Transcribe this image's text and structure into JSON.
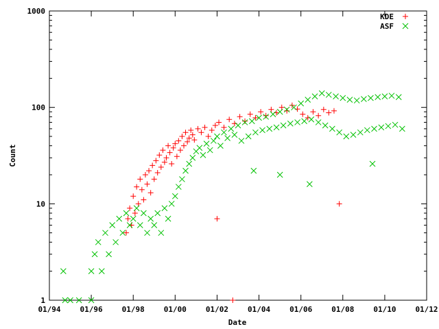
{
  "chart_data": {
    "type": "scatter",
    "title": "",
    "xlabel": "Date",
    "ylabel": "Count",
    "x_scale": "date",
    "y_scale": "log",
    "xlim": [
      "1994-01-01",
      "2012-01-01"
    ],
    "ylim": [
      1,
      1000
    ],
    "x_tick_labels": [
      "01/94",
      "01/96",
      "01/98",
      "01/00",
      "01/02",
      "01/04",
      "01/06",
      "01/08",
      "01/10",
      "01/12"
    ],
    "x_tick_dates": [
      "1994-01-01",
      "1996-01-01",
      "1998-01-01",
      "2000-01-01",
      "2002-01-01",
      "2004-01-01",
      "2006-01-01",
      "2008-01-01",
      "2010-01-01",
      "2012-01-01"
    ],
    "y_tick_labels": [
      "1",
      "10",
      "100",
      "1000"
    ],
    "y_tick_values": [
      1,
      10,
      100,
      1000
    ],
    "grid": false,
    "legend_position": "top-right",
    "series": [
      {
        "name": "KDE",
        "marker": "+",
        "color": "#ff0000",
        "points": [
          [
            "1997-09-01",
            5
          ],
          [
            "1997-10-01",
            7
          ],
          [
            "1997-11-01",
            9
          ],
          [
            "1997-12-01",
            6
          ],
          [
            "1998-01-01",
            12
          ],
          [
            "1998-02-01",
            8
          ],
          [
            "1998-03-01",
            15
          ],
          [
            "1998-04-01",
            10
          ],
          [
            "1998-05-01",
            18
          ],
          [
            "1998-06-01",
            14
          ],
          [
            "1998-07-01",
            11
          ],
          [
            "1998-08-01",
            20
          ],
          [
            "1998-09-01",
            16
          ],
          [
            "1998-10-01",
            22
          ],
          [
            "1998-11-01",
            13
          ],
          [
            "1998-12-01",
            25
          ],
          [
            "1999-01-01",
            18
          ],
          [
            "1999-02-01",
            28
          ],
          [
            "1999-03-01",
            21
          ],
          [
            "1999-04-01",
            32
          ],
          [
            "1999-05-01",
            24
          ],
          [
            "1999-06-01",
            36
          ],
          [
            "1999-07-01",
            27
          ],
          [
            "1999-08-01",
            30
          ],
          [
            "1999-09-01",
            40
          ],
          [
            "1999-10-01",
            34
          ],
          [
            "1999-11-01",
            26
          ],
          [
            "1999-12-01",
            38
          ],
          [
            "2000-01-01",
            42
          ],
          [
            "2000-02-01",
            31
          ],
          [
            "2000-03-01",
            45
          ],
          [
            "2000-04-01",
            36
          ],
          [
            "2000-05-01",
            50
          ],
          [
            "2000-06-01",
            40
          ],
          [
            "2000-07-01",
            55
          ],
          [
            "2000-08-01",
            44
          ],
          [
            "2000-09-01",
            48
          ],
          [
            "2000-10-01",
            58
          ],
          [
            "2000-11-01",
            52
          ],
          [
            "2000-12-01",
            46
          ],
          [
            "2001-02-01",
            60
          ],
          [
            "2001-04-01",
            55
          ],
          [
            "2001-06-01",
            62
          ],
          [
            "2001-08-01",
            50
          ],
          [
            "2001-10-01",
            58
          ],
          [
            "2001-12-01",
            65
          ],
          [
            "2002-01-01",
            7
          ],
          [
            "2002-02-01",
            70
          ],
          [
            "2002-05-01",
            62
          ],
          [
            "2002-08-01",
            75
          ],
          [
            "2002-11-01",
            68
          ],
          [
            "2003-02-01",
            80
          ],
          [
            "2003-05-01",
            72
          ],
          [
            "2003-08-01",
            85
          ],
          [
            "2003-11-01",
            78
          ],
          [
            "2004-02-01",
            90
          ],
          [
            "2004-05-01",
            82
          ],
          [
            "2004-08-01",
            95
          ],
          [
            "2004-11-01",
            88
          ],
          [
            "2005-02-01",
            100
          ],
          [
            "2005-05-01",
            92
          ],
          [
            "2005-08-01",
            105
          ],
          [
            "2005-11-01",
            96
          ],
          [
            "2006-02-01",
            85
          ],
          [
            "2006-05-01",
            78
          ],
          [
            "2006-08-01",
            90
          ],
          [
            "2006-11-01",
            82
          ],
          [
            "2007-02-01",
            95
          ],
          [
            "2007-05-01",
            88
          ],
          [
            "2007-08-01",
            92
          ],
          [
            "2007-11-01",
            10
          ],
          [
            "2002-10-01",
            1
          ]
        ]
      },
      {
        "name": "ASF",
        "marker": "x",
        "color": "#00c000",
        "points": [
          [
            "1994-09-01",
            2
          ],
          [
            "1994-10-01",
            1
          ],
          [
            "1995-01-01",
            1
          ],
          [
            "1995-06-01",
            1
          ],
          [
            "1996-01-01",
            1
          ],
          [
            "1996-01-01",
            2
          ],
          [
            "1996-03-01",
            3
          ],
          [
            "1996-05-01",
            4
          ],
          [
            "1996-07-01",
            2
          ],
          [
            "1996-09-01",
            5
          ],
          [
            "1996-11-01",
            3
          ],
          [
            "1997-01-01",
            6
          ],
          [
            "1997-03-01",
            4
          ],
          [
            "1997-05-01",
            7
          ],
          [
            "1997-07-01",
            5
          ],
          [
            "1997-09-01",
            8
          ],
          [
            "1997-11-01",
            6
          ],
          [
            "1998-01-01",
            7
          ],
          [
            "1998-03-01",
            9
          ],
          [
            "1998-05-01",
            6
          ],
          [
            "1998-07-01",
            8
          ],
          [
            "1998-09-01",
            5
          ],
          [
            "1998-11-01",
            7
          ],
          [
            "1999-01-01",
            6
          ],
          [
            "1999-03-01",
            8
          ],
          [
            "1999-05-01",
            5
          ],
          [
            "1999-07-01",
            9
          ],
          [
            "1999-09-01",
            7
          ],
          [
            "1999-11-01",
            10
          ],
          [
            "2000-01-01",
            12
          ],
          [
            "2000-03-01",
            15
          ],
          [
            "2000-05-01",
            18
          ],
          [
            "2000-07-01",
            22
          ],
          [
            "2000-09-01",
            26
          ],
          [
            "2000-11-01",
            30
          ],
          [
            "2001-01-01",
            35
          ],
          [
            "2001-03-01",
            38
          ],
          [
            "2001-05-01",
            32
          ],
          [
            "2001-07-01",
            42
          ],
          [
            "2001-09-01",
            36
          ],
          [
            "2001-11-01",
            45
          ],
          [
            "2002-01-01",
            50
          ],
          [
            "2002-03-01",
            40
          ],
          [
            "2002-05-01",
            55
          ],
          [
            "2002-07-01",
            48
          ],
          [
            "2002-09-01",
            60
          ],
          [
            "2002-11-01",
            52
          ],
          [
            "2003-01-01",
            65
          ],
          [
            "2003-03-01",
            45
          ],
          [
            "2003-05-01",
            70
          ],
          [
            "2003-07-01",
            50
          ],
          [
            "2003-09-01",
            72
          ],
          [
            "2003-11-01",
            55
          ],
          [
            "2004-01-01",
            78
          ],
          [
            "2004-03-01",
            58
          ],
          [
            "2004-05-01",
            80
          ],
          [
            "2004-07-01",
            60
          ],
          [
            "2004-09-01",
            85
          ],
          [
            "2004-11-01",
            62
          ],
          [
            "2005-01-01",
            90
          ],
          [
            "2005-03-01",
            65
          ],
          [
            "2005-05-01",
            95
          ],
          [
            "2005-07-01",
            68
          ],
          [
            "2005-09-01",
            100
          ],
          [
            "2005-11-01",
            70
          ],
          [
            "2006-01-01",
            110
          ],
          [
            "2006-03-01",
            72
          ],
          [
            "2006-05-01",
            120
          ],
          [
            "2006-07-01",
            75
          ],
          [
            "2006-09-01",
            130
          ],
          [
            "2006-11-01",
            70
          ],
          [
            "2007-01-01",
            140
          ],
          [
            "2007-03-01",
            65
          ],
          [
            "2007-05-01",
            135
          ],
          [
            "2007-07-01",
            60
          ],
          [
            "2007-09-01",
            130
          ],
          [
            "2007-11-01",
            55
          ],
          [
            "2008-01-01",
            125
          ],
          [
            "2008-03-01",
            50
          ],
          [
            "2008-05-01",
            120
          ],
          [
            "2008-07-01",
            52
          ],
          [
            "2008-09-01",
            118
          ],
          [
            "2008-11-01",
            55
          ],
          [
            "2009-01-01",
            122
          ],
          [
            "2009-03-01",
            58
          ],
          [
            "2009-05-01",
            125
          ],
          [
            "2009-07-01",
            60
          ],
          [
            "2009-09-01",
            128
          ],
          [
            "2009-11-01",
            62
          ],
          [
            "2010-01-01",
            130
          ],
          [
            "2010-03-01",
            64
          ],
          [
            "2010-05-01",
            132
          ],
          [
            "2010-07-01",
            66
          ],
          [
            "2010-09-01",
            128
          ],
          [
            "2010-11-01",
            60
          ],
          [
            "2006-06-01",
            16
          ],
          [
            "2005-01-01",
            20
          ],
          [
            "2003-10-01",
            22
          ],
          [
            "2009-06-01",
            26
          ]
        ]
      }
    ]
  }
}
